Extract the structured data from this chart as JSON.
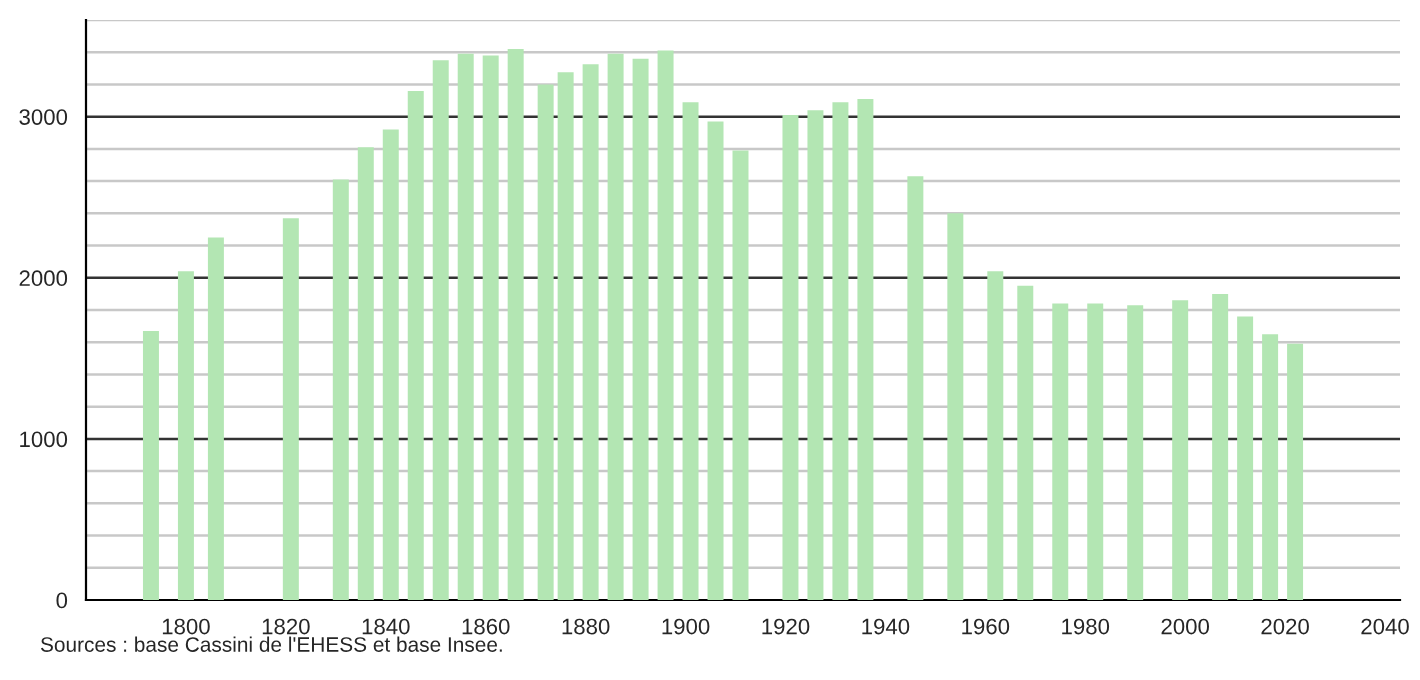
{
  "chart_data": {
    "type": "bar",
    "color": "#b3e6b3",
    "grid": "y",
    "x": [
      1793,
      1800,
      1806,
      1821,
      1831,
      1836,
      1841,
      1846,
      1851,
      1856,
      1861,
      1866,
      1872,
      1876,
      1881,
      1886,
      1891,
      1896,
      1901,
      1906,
      1911,
      1921,
      1926,
      1931,
      1936,
      1946,
      1954,
      1962,
      1968,
      1975,
      1982,
      1990,
      1999,
      2007,
      2012,
      2017,
      2022
    ],
    "values": [
      1670,
      2040,
      2250,
      2370,
      2610,
      2810,
      2920,
      3160,
      3350,
      3390,
      3380,
      3420,
      3200,
      3275,
      3325,
      3390,
      3360,
      3410,
      3090,
      2970,
      2790,
      3010,
      3040,
      3090,
      3110,
      2630,
      2400,
      2040,
      1950,
      1840,
      1840,
      1830,
      1860,
      1900,
      1760,
      1650,
      1590
    ],
    "xlim": [
      1780,
      2043
    ],
    "xticks": [
      1800,
      1820,
      1840,
      1860,
      1880,
      1900,
      1920,
      1940,
      1960,
      1980,
      2000,
      2020,
      2040
    ],
    "ylim": [
      0,
      3600
    ],
    "yticks": [
      0,
      {
        "value": 200,
        "label": null
      },
      {
        "value": 400,
        "label": null
      },
      {
        "value": 600,
        "label": null
      },
      {
        "value": 800,
        "label": null
      },
      1000,
      {
        "value": 1200,
        "label": null
      },
      {
        "value": 1400,
        "label": null
      },
      {
        "value": 1600,
        "label": null
      },
      {
        "value": 1800,
        "label": null
      },
      2000,
      {
        "value": 2200,
        "label": null
      },
      {
        "value": 2400,
        "label": null
      },
      {
        "value": 2600,
        "label": null
      },
      {
        "value": 2800,
        "label": null
      },
      3000,
      {
        "value": 3200,
        "label": null
      },
      {
        "value": 3400,
        "label": null
      },
      {
        "value": 3600,
        "label": null
      }
    ],
    "annotations": [
      "Sources : base Cassini de l'EHESS et base Insee."
    ]
  }
}
